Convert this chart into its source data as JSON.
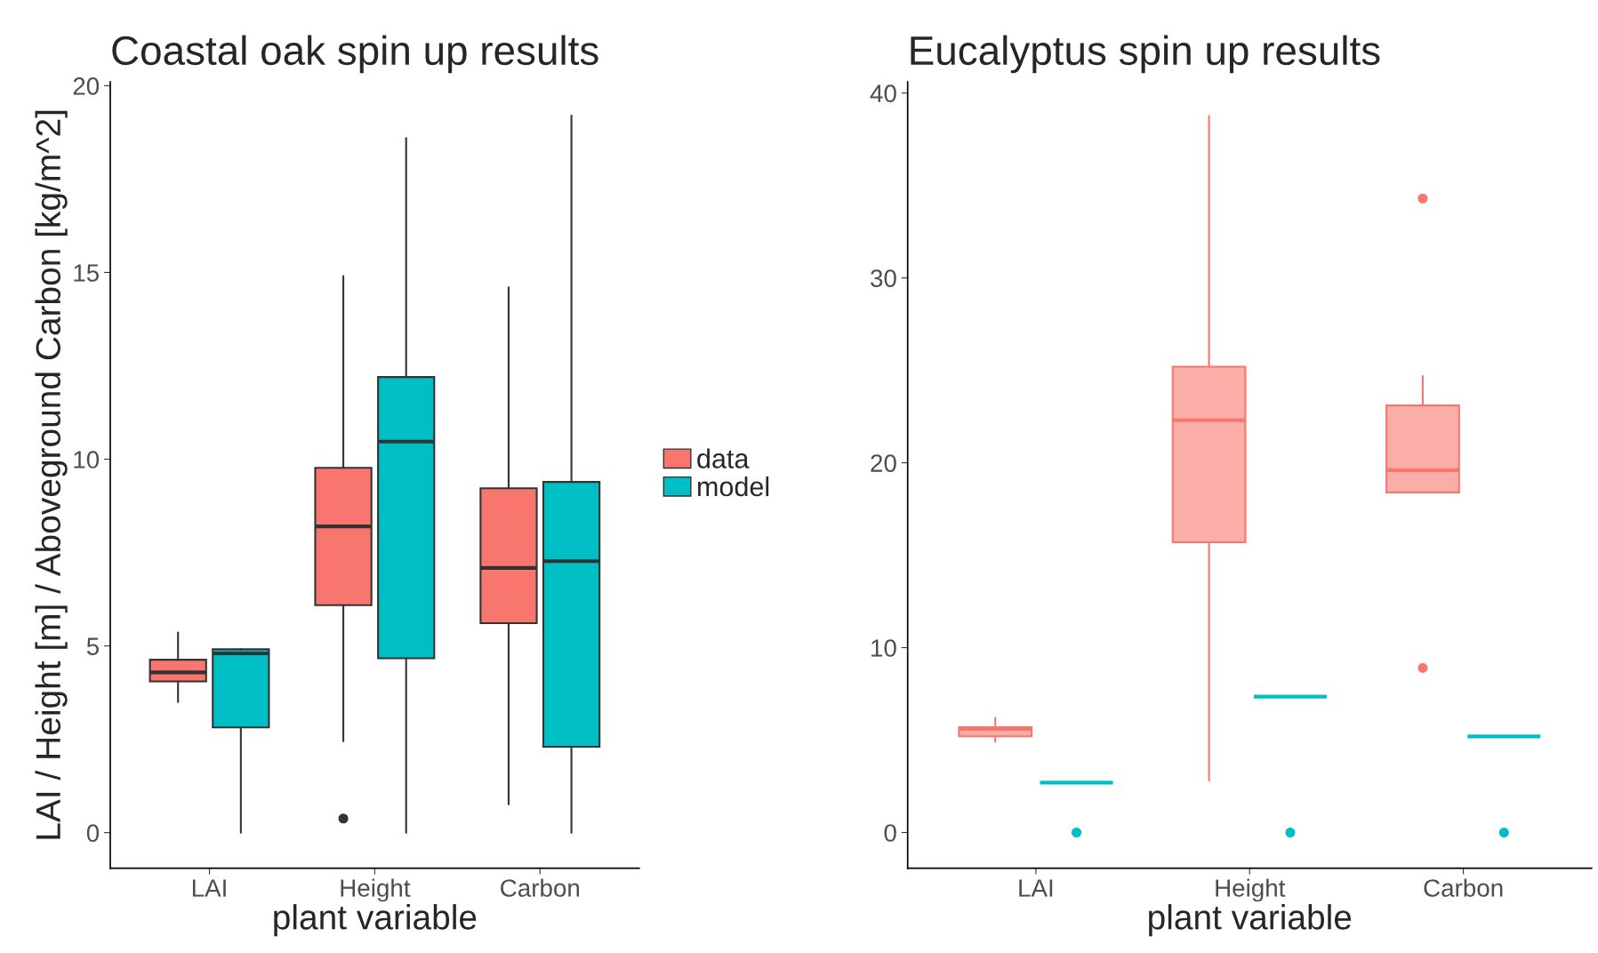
{
  "chart_data": [
    {
      "type": "box",
      "title": "Coastal oak spin up results",
      "xlabel": "plant variable",
      "ylabel": "LAI / Height [m] / Aboveground Carbon [kg/m^2]",
      "categories": [
        "LAI",
        "Height",
        "Carbon"
      ],
      "ylim": [
        -0.95,
        20.1
      ],
      "yticks": [
        0,
        5,
        10,
        15,
        20
      ],
      "grid": false,
      "legend": "right",
      "series": [
        {
          "name": "data",
          "color": "#f8766d",
          "boxes": [
            {
              "low": 3.5,
              "q1": 4.05,
              "median": 4.29,
              "q3": 4.63,
              "high": 5.36
            },
            {
              "low": 2.45,
              "q1": 6.09,
              "median": 8.2,
              "q3": 9.77,
              "high": 14.9,
              "outliers": [
                0.38
              ]
            },
            {
              "low": 0.76,
              "q1": 5.61,
              "median": 7.09,
              "q3": 9.22,
              "high": 14.6
            }
          ]
        },
        {
          "name": "model",
          "color": "#00bfc4",
          "boxes": [
            {
              "low": 0,
              "q1": 2.82,
              "median": 4.8,
              "q3": 4.91,
              "high": 4.91
            },
            {
              "low": 0,
              "q1": 4.67,
              "median": 10.47,
              "q3": 12.2,
              "high": 18.6
            },
            {
              "low": 0,
              "q1": 2.3,
              "median": 7.27,
              "q3": 9.39,
              "high": 19.2
            }
          ]
        }
      ]
    },
    {
      "type": "box",
      "title": "Eucalyptus spin up results",
      "xlabel": "plant variable",
      "categories": [
        "LAI",
        "Height",
        "Carbon"
      ],
      "ylim": [
        -1.93,
        40.6
      ],
      "yticks": [
        0,
        10,
        20,
        30,
        40
      ],
      "grid": false,
      "series": [
        {
          "color": "#f8766d",
          "boxes": [
            {
              "low": 4.9,
              "q1": 5.2,
              "median": 5.6,
              "q3": 5.7,
              "high": 6.2
            },
            {
              "low": 2.8,
              "q1": 15.7,
              "median": 22.3,
              "q3": 25.2,
              "high": 38.75
            },
            {
              "low": 18.4,
              "q1": 18.4,
              "median": 19.6,
              "q3": 23.1,
              "high": 24.7,
              "outliers": [
                34.3,
                8.9
              ]
            }
          ]
        },
        {
          "color": "#00bfc4",
          "boxes": [
            {
              "low": 2.7,
              "q1": 2.7,
              "median": 2.7,
              "q3": 2.7,
              "high": 2.7,
              "outliers": [
                0
              ]
            },
            {
              "low": 7.35,
              "q1": 7.35,
              "median": 7.35,
              "q3": 7.35,
              "high": 7.35,
              "outliers": [
                0
              ]
            },
            {
              "low": 5.2,
              "q1": 5.2,
              "median": 5.2,
              "q3": 5.2,
              "high": 5.2,
              "outliers": [
                0
              ]
            }
          ]
        }
      ]
    }
  ]
}
